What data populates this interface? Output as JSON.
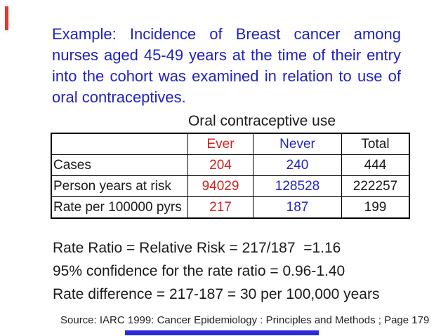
{
  "slide": {
    "title_lines": [
      "Example: Incidence of Breast cancer among",
      "nurses aged 45-49 years at the time of their entry",
      "into the cohort was examined in relation to use of",
      "oral contraceptives."
    ],
    "table": {
      "caption": "Oral contraceptive use",
      "columns": {
        "label": "",
        "ever": "Ever",
        "never": "Never",
        "total": "Total"
      },
      "rows": [
        {
          "label": "Cases",
          "ever": "204",
          "never": "240",
          "total": "444"
        },
        {
          "label": "Person years at risk",
          "ever": "94029",
          "never": "128528",
          "total": "222257"
        },
        {
          "label": "Rate per 100000 pyrs",
          "ever": "217",
          "never": "187",
          "total": "199"
        }
      ]
    },
    "stats_lines": {
      "rate_ratio": "Rate Ratio = Relative Risk = 217/187  =1.16",
      "confidence": "95% confidence for the rate ratio = 0.96-1.40",
      "rate_difference": "Rate difference = 217-187 = 30 per 100,000 years"
    },
    "source": "Source: IARC 1999: Cancer Epidemiology : Principles and Methods ; Page 179",
    "colors": {
      "title_blue": "#2222c0",
      "value_red": "#cd231e",
      "value_blue": "#2324c3",
      "text_black": "#1a1a1a",
      "red_bar": "#e3372a",
      "blue_bar": "#2b2bdc"
    }
  }
}
